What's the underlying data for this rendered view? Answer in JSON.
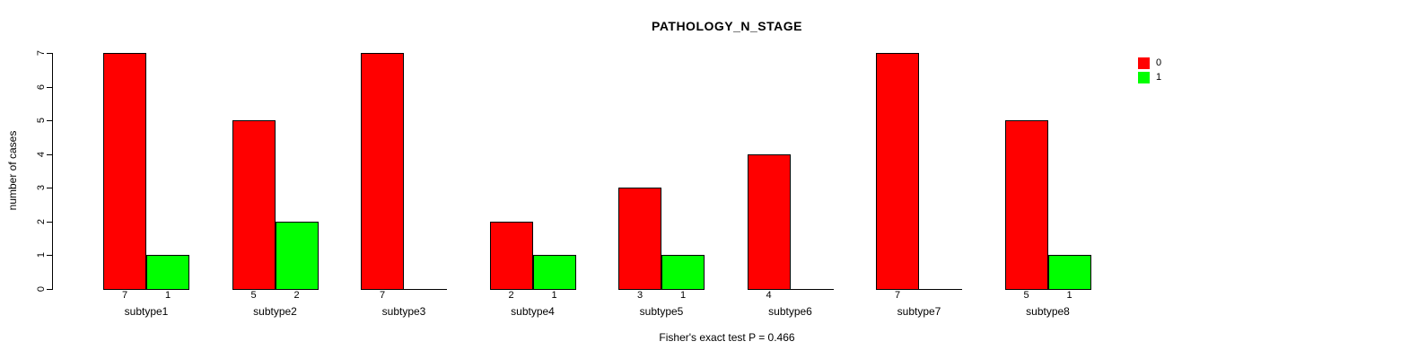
{
  "chart_data": {
    "type": "bar",
    "title": "PATHOLOGY_N_STAGE",
    "ylabel": "number of cases",
    "xlabel": "",
    "ylim": [
      0,
      7
    ],
    "yticks": [
      0,
      1,
      2,
      3,
      4,
      5,
      6,
      7
    ],
    "grid": false,
    "legend_position": "topright",
    "categories": [
      "subtype1",
      "subtype2",
      "subtype3",
      "subtype4",
      "subtype5",
      "subtype6",
      "subtype7",
      "subtype8"
    ],
    "series": [
      {
        "name": "0",
        "color": "#FF0000",
        "values": [
          7,
          5,
          7,
          2,
          3,
          4,
          7,
          5
        ]
      },
      {
        "name": "1",
        "color": "#00FF00",
        "values": [
          1,
          2,
          0,
          1,
          1,
          0,
          0,
          1
        ]
      }
    ],
    "bar_value_labels_shown_only_when_positive": true,
    "caption": "Fisher's exact test P = 0.466"
  }
}
